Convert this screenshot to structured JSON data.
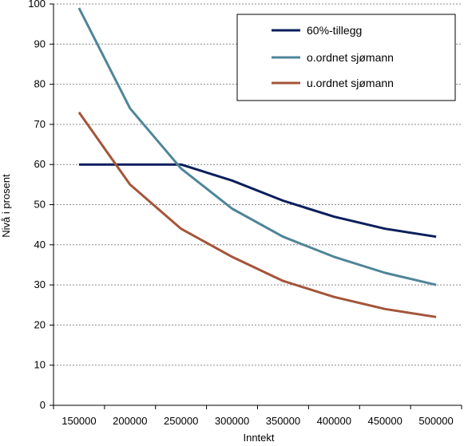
{
  "chart_data": {
    "type": "line",
    "xlabel": "Inntekt",
    "ylabel": "Nivå i prosent",
    "x": [
      150000,
      200000,
      250000,
      300000,
      350000,
      400000,
      450000,
      500000
    ],
    "x_tick_labels": [
      "150000",
      "200000",
      "250000",
      "300000",
      "350000",
      "400000",
      "450000",
      "500000"
    ],
    "ylim": [
      0,
      100
    ],
    "y_ticks": [
      0,
      10,
      20,
      30,
      40,
      50,
      60,
      70,
      80,
      90,
      100
    ],
    "grid": "horizontal dotted",
    "legend_position": "top-right",
    "series": [
      {
        "name": "60%-tillegg",
        "color": "#0b1f5c",
        "values": [
          60,
          60,
          60,
          56,
          51,
          47,
          44,
          42
        ]
      },
      {
        "name": "o.ordnet sjømann",
        "color": "#4f8598",
        "values": [
          99,
          74,
          59,
          49,
          42,
          37,
          33,
          30
        ]
      },
      {
        "name": "u.ordnet sjømann",
        "color": "#a4553a",
        "values": [
          73,
          55,
          44,
          37,
          31,
          27,
          24,
          22
        ]
      }
    ]
  }
}
